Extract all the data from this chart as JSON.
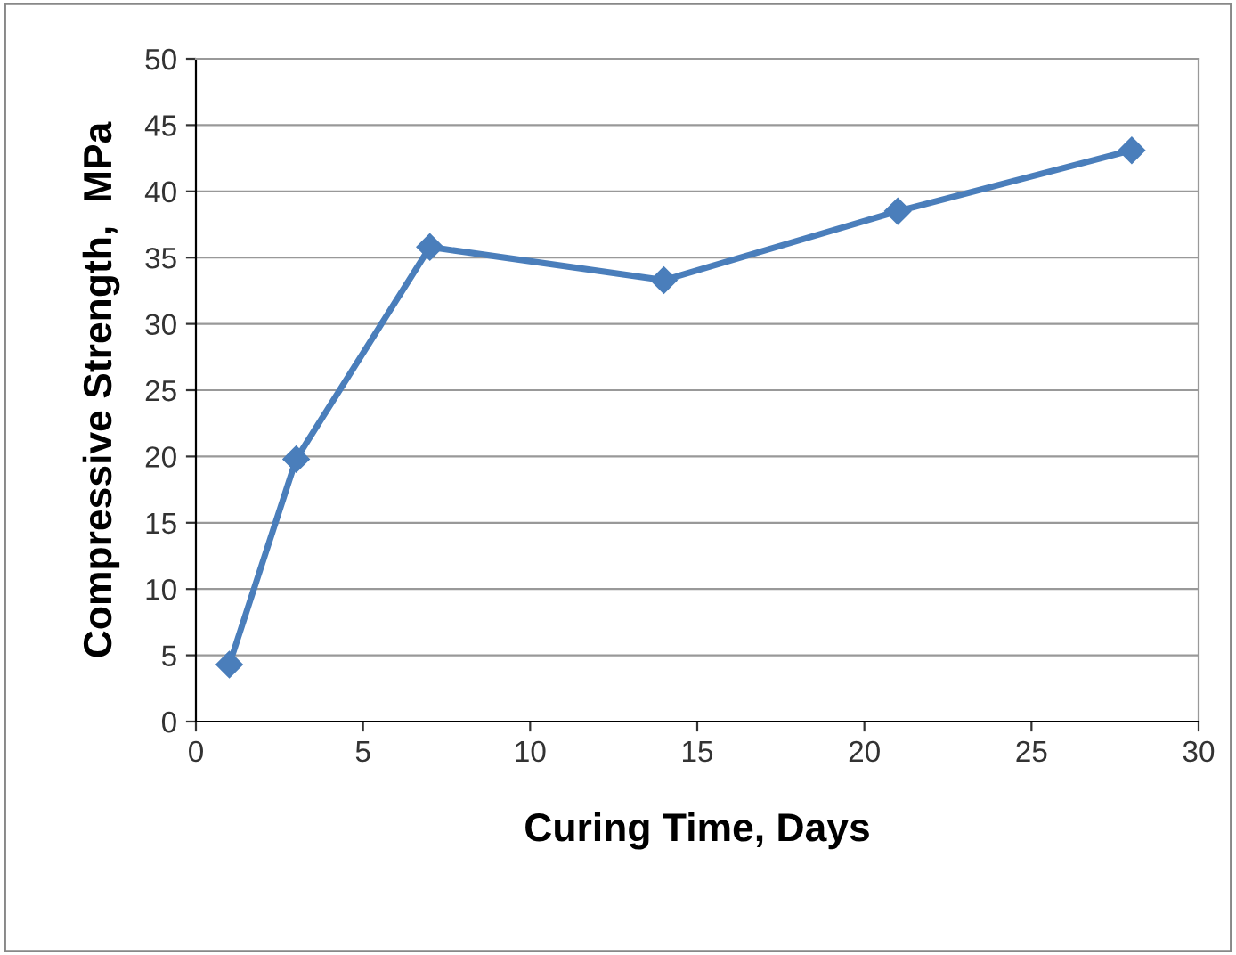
{
  "chart_data": {
    "type": "line",
    "xlabel": "Curing Time, Days",
    "ylabel": "Compressive Strength,  MPa",
    "x": [
      1,
      3,
      7,
      14,
      21,
      28
    ],
    "series": [
      {
        "color": "#4a7ebb",
        "values": [
          4.3,
          19.8,
          35.8,
          33.3,
          38.5,
          43.1
        ]
      }
    ],
    "xlim": [
      0,
      30
    ],
    "xticks": [
      0,
      5,
      10,
      15,
      20,
      25,
      30
    ],
    "ylim": [
      0,
      50
    ],
    "yticks": [
      0,
      5,
      10,
      15,
      20,
      25,
      30,
      35,
      40,
      45,
      50
    ],
    "grid": "y",
    "marker": "diamond",
    "line_style": "solid",
    "legend": false
  }
}
